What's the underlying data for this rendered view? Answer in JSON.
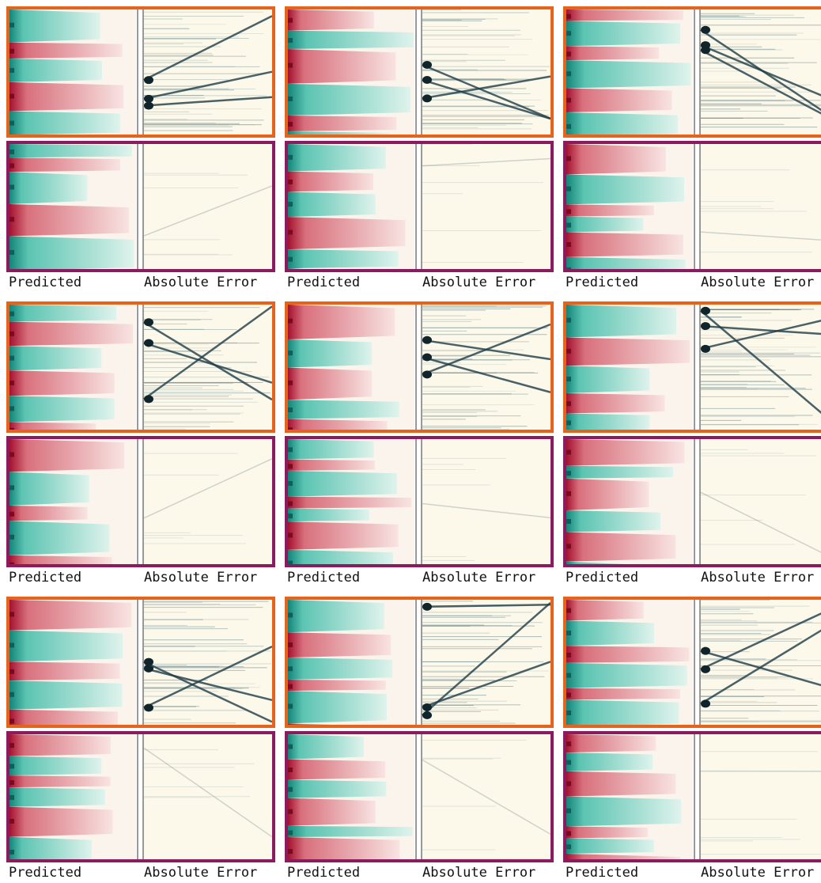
{
  "panels": [
    {
      "predicted_label": "Predicted",
      "error_label": "Absolute Error"
    },
    {
      "predicted_label": "Predicted",
      "error_label": "Absolute Error"
    },
    {
      "predicted_label": "Predicted",
      "error_label": "Absolute Error"
    },
    {
      "predicted_label": "Predicted",
      "error_label": "Absolute Error"
    },
    {
      "predicted_label": "Predicted",
      "error_label": "Absolute Error"
    },
    {
      "predicted_label": "Predicted",
      "error_label": "Absolute Error"
    },
    {
      "predicted_label": "Predicted",
      "error_label": "Absolute Error"
    },
    {
      "predicted_label": "Predicted",
      "error_label": "Absolute Error"
    },
    {
      "predicted_label": "Predicted",
      "error_label": "Absolute Error"
    }
  ]
}
